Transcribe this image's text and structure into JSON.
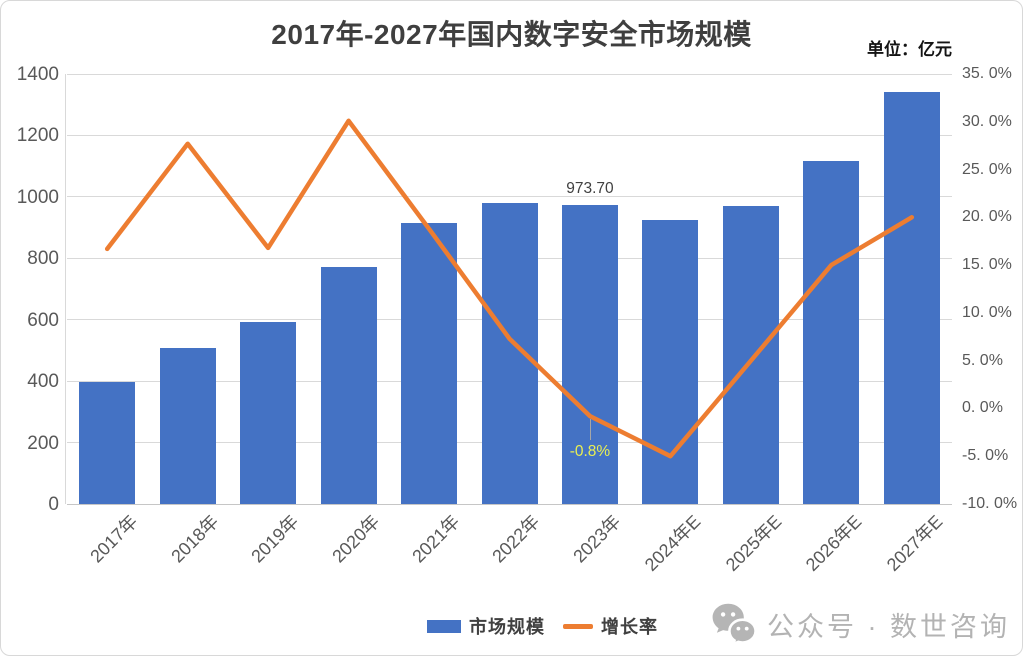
{
  "chart_data": {
    "type": "bar+line",
    "title": "2017年-2027年国内数字安全市场规模",
    "unit_label": "单位：亿元",
    "categories": [
      "2017年",
      "2018年",
      "2019年",
      "2020年",
      "2021年",
      "2022年",
      "2023年",
      "2024年E",
      "2025年E",
      "2026年E",
      "2027年E"
    ],
    "series": [
      {
        "name": "市场规模",
        "type": "bar",
        "axis": "left",
        "color": "#4472C4",
        "values": [
          397.0,
          507.0,
          592.2,
          770.4,
          915.2,
          981.6,
          973.7,
          925.1,
          971.4,
          1117.1,
          1340.5
        ]
      },
      {
        "name": "增长率",
        "type": "line",
        "axis": "right",
        "color": "#ED7D31",
        "values": [
          16.7,
          27.7,
          16.8,
          30.1,
          18.8,
          7.3,
          -0.8,
          -5.0,
          5.0,
          15.0,
          20.0
        ]
      }
    ],
    "left_axis": {
      "min": 0,
      "max": 1400,
      "step": 200,
      "tick_labels": [
        "0",
        "200",
        "400",
        "600",
        "800",
        "1000",
        "1200",
        "1400"
      ]
    },
    "right_axis": {
      "min": -10,
      "max": 35,
      "step": 5,
      "tick_labels": [
        "-10. 0%",
        "-5. 0%",
        "0. 0%",
        "5. 0%",
        "10. 0%",
        "15. 0%",
        "20. 0%",
        "25. 0%",
        "30. 0%",
        "35. 0%"
      ]
    },
    "annotations": [
      {
        "category": "2023年",
        "series": "市场规模",
        "text": "973.70",
        "color": "#404040"
      },
      {
        "category": "2023年",
        "series": "增长率",
        "text": "-0.8%",
        "color": "#E9EF52"
      }
    ],
    "grid": true,
    "legend_position": "bottom"
  },
  "legend": {
    "items": [
      {
        "label": "市场规模",
        "marker": "rect",
        "color": "#4472C4"
      },
      {
        "label": "增长率",
        "marker": "line",
        "color": "#ED7D31"
      }
    ]
  },
  "watermark": {
    "icon": "wechat-icon",
    "text": "公众号 · 数世咨询",
    "color": "#B5B5B5"
  }
}
